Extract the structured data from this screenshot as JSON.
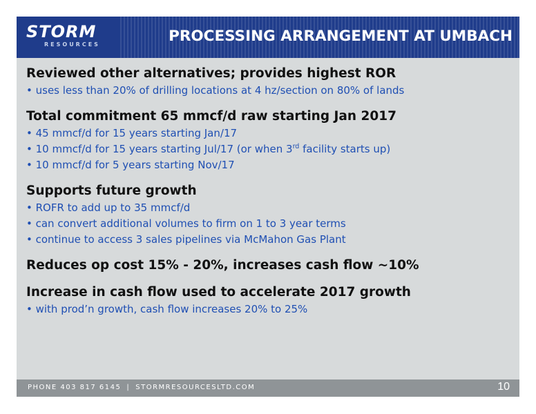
{
  "header": {
    "logo_text": "STORM",
    "logo_subtext": "RESOURCES",
    "title": "PROCESSING ARRANGEMENT AT UMBACH"
  },
  "sections": [
    {
      "heading": "Reviewed other alternatives; provides highest ROR",
      "bullets": [
        "• uses less than 20% of drilling locations at 4 hz/section on 80% of lands"
      ]
    },
    {
      "heading": "Total commitment 65 mmcf/d raw starting Jan 2017",
      "bullets": [
        "• 45 mmcf/d for 15 years starting Jan/17",
        "• 10 mmcf/d for 15 years starting Jul/17 (or when 3",
        "• 10 mmcf/d for 5 years starting Nov/17"
      ],
      "bullet_2_sup": "rd",
      "bullet_2_tail": " facility starts up)"
    },
    {
      "heading": "Supports future growth",
      "bullets": [
        "• ROFR to add up to 35 mmcf/d",
        "• can convert additional volumes to firm on 1 to 3 year terms",
        "• continue to access 3 sales pipelines via McMahon Gas Plant"
      ]
    },
    {
      "heading": "Reduces op cost 15% - 20%, increases cash flow ~10%",
      "bullets": []
    },
    {
      "heading": "Increase in cash flow used to accelerate 2017 growth",
      "bullets": [
        "• with prod’n growth, cash flow increases 20% to 25%"
      ]
    }
  ],
  "footer": {
    "phone": "PHONE 403 817 6145",
    "separator": "|",
    "website": "STORMRESOURCESLTD.COM",
    "page_number": "10"
  },
  "colors": {
    "header_bg": "#1f3c8b",
    "slide_bg": "#d7dadb",
    "bullet_text": "#1f4fb3",
    "footer_bg": "#8f9497"
  }
}
